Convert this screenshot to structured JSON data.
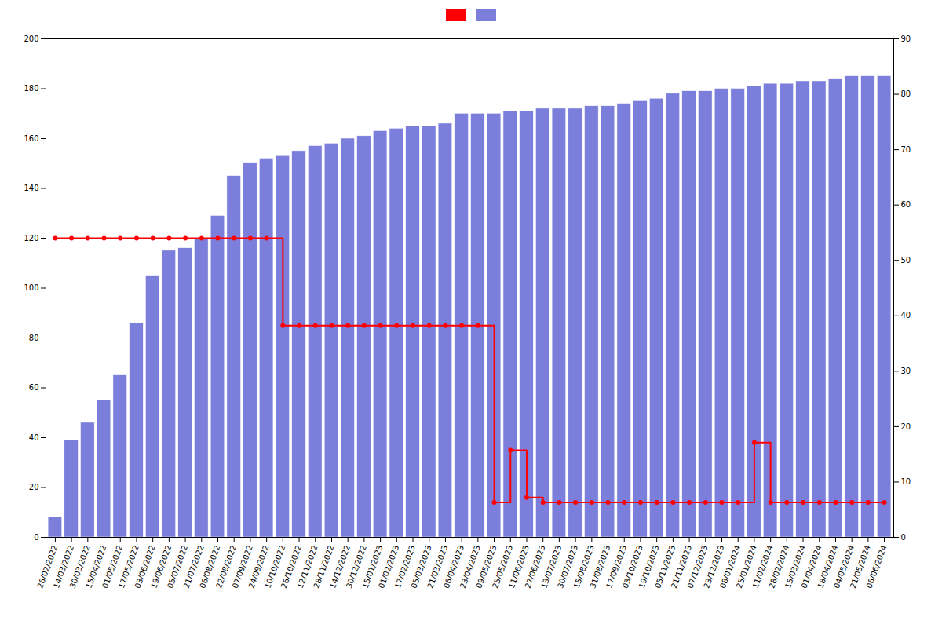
{
  "chart_data": {
    "type": "bar",
    "categories": [
      "26/02/2022",
      "14/03/2022",
      "30/03/2022",
      "15/04/2022",
      "01/05/2022",
      "17/05/2022",
      "03/06/2022",
      "19/06/2022",
      "05/07/2022",
      "21/07/2022",
      "06/08/2022",
      "22/08/2022",
      "07/09/2022",
      "24/09/2022",
      "10/10/2022",
      "26/10/2022",
      "12/11/2022",
      "28/11/2022",
      "14/12/2022",
      "30/12/2022",
      "15/01/2023",
      "01/02/2023",
      "17/02/2023",
      "05/03/2023",
      "21/03/2023",
      "06/04/2023",
      "23/04/2023",
      "09/05/2023",
      "25/05/2023",
      "11/06/2023",
      "27/06/2023",
      "13/07/2023",
      "30/07/2023",
      "15/08/2023",
      "31/08/2023",
      "17/09/2023",
      "03/10/2023",
      "19/10/2023",
      "05/11/2023",
      "21/11/2023",
      "07/12/2023",
      "23/12/2023",
      "08/01/2024",
      "25/01/2024",
      "11/02/2024",
      "28/02/2024",
      "15/03/2024",
      "01/04/2024",
      "18/04/2024",
      "04/05/2024",
      "21/05/2024",
      "06/06/2024"
    ],
    "series": [
      {
        "type": "line",
        "line_style": "step",
        "marker": "circle",
        "color": "#ff0000",
        "values": [
          120,
          120,
          120,
          120,
          120,
          120,
          120,
          120,
          120,
          120,
          120,
          120,
          120,
          120,
          85,
          85,
          85,
          85,
          85,
          85,
          85,
          85,
          85,
          85,
          85,
          85,
          85,
          14,
          35,
          16,
          14,
          14,
          14,
          14,
          14,
          14,
          14,
          14,
          14,
          14,
          14,
          14,
          14,
          38,
          14,
          14,
          14,
          14,
          14,
          14,
          14,
          14
        ]
      },
      {
        "type": "bar",
        "color": "#7b7fdb",
        "values": [
          8,
          39,
          46,
          55,
          65,
          86,
          105,
          115,
          116,
          120,
          129,
          145,
          150,
          152,
          153,
          155,
          157,
          158,
          160,
          161,
          163,
          164,
          165,
          165,
          166,
          170,
          170,
          170,
          171,
          171,
          172,
          172,
          172,
          173,
          173,
          174,
          175,
          176,
          178,
          179,
          179,
          180,
          180,
          181,
          182,
          182,
          183,
          183,
          184,
          185,
          185,
          185
        ]
      }
    ],
    "ylim": [
      0,
      200
    ],
    "yticks": [
      0,
      20,
      40,
      60,
      80,
      100,
      120,
      140,
      160,
      180,
      200
    ],
    "y2lim": [
      0,
      90
    ],
    "y2ticks": [
      0,
      10,
      20,
      30,
      40,
      50,
      60,
      70,
      80,
      90
    ],
    "grid": false,
    "legend": "top"
  }
}
